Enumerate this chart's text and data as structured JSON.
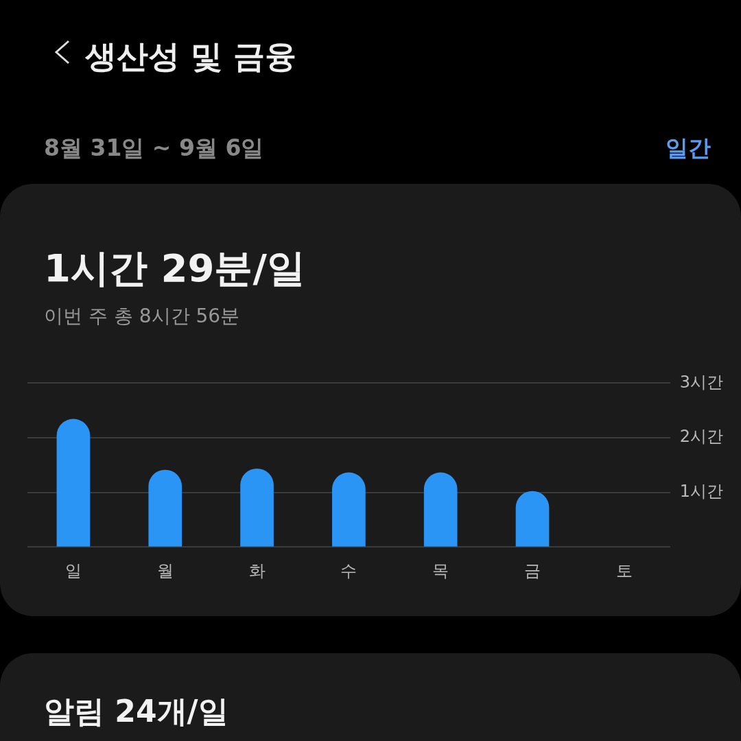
{
  "chart_data": {
    "type": "bar",
    "title": "생산성 및 금융",
    "subtitle": "8월 31일 ~ 9월 6일",
    "annotations": [
      "일간",
      "1시간 29분/일",
      "이번 주 총 8시간 56분",
      "알림 24개/일"
    ],
    "categories": [
      "일",
      "월",
      "화",
      "수",
      "목",
      "금",
      "토"
    ],
    "values": [
      2.34,
      1.41,
      1.43,
      1.36,
      1.36,
      1.02,
      null
    ],
    "color": "#2b95f5",
    "ylim": [
      0,
      3
    ],
    "yticks": [
      {
        "value": 0,
        "label": null
      },
      {
        "value": 1,
        "label": "1시간"
      },
      {
        "value": 2,
        "label": "2시간"
      },
      {
        "value": 3,
        "label": "3시간"
      }
    ],
    "grid": "y",
    "legend": false
  }
}
